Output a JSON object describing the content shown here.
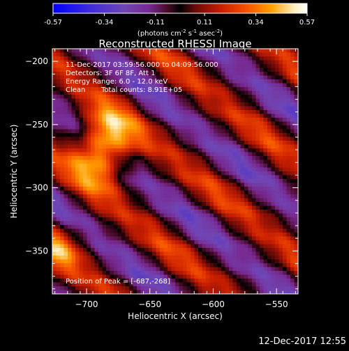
{
  "colorbar": {
    "ticks": [
      "-0.57",
      "-0.34",
      "-0.11",
      "0.11",
      "0.34",
      "0.57"
    ],
    "tick_values": [
      -0.57,
      -0.34,
      -0.11,
      0.11,
      0.34,
      0.57
    ],
    "units_prefix": "(photons cm",
    "units_exp1": "-2",
    "units_mid": " s",
    "units_exp2": "-1",
    "units_end": " asec",
    "units_exp3": "-2",
    "units_close": ")"
  },
  "chart_data": {
    "type": "heatmap",
    "title": "Reconstructed RHESSI Image",
    "xlabel": "Heliocentric X (arcsec)",
    "ylabel": "Heliocentric Y (arcsec)",
    "xlim": [
      -727,
      -533
    ],
    "ylim": [
      -384,
      -190
    ],
    "x_ticks": [
      -700,
      -650,
      -600,
      -550
    ],
    "x_tick_labels": [
      "−700",
      "−650",
      "−600",
      "−550"
    ],
    "y_ticks": [
      -200,
      -250,
      -300,
      -350
    ],
    "y_tick_labels": [
      "−200",
      "−250",
      "−300",
      "−350"
    ],
    "value_range": [
      -0.57,
      0.57
    ],
    "peak": [
      -687,
      -268
    ],
    "annotations": {
      "time_range": "11-Dec-2017 03:59:56.000 to 04:09:56.000",
      "detectors": "Detectors: 3F 6F 8F, Att 1",
      "energy": "Energy Range: 6.0 - 12.0 keV",
      "method": "Clean",
      "counts": "Total counts: 8.91E+05",
      "peak_label": "Position of Peak = [-687,-268]"
    }
  },
  "footer": {
    "timestamp": "12-Dec-2017 12:55"
  },
  "colors": {
    "background": "#000000",
    "text": "#ffffff",
    "colormap": [
      "#0000ff",
      "#3c2adc",
      "#7046b4",
      "#782890",
      "#4a0a28",
      "#000000",
      "#6a0a0a",
      "#c81e00",
      "#f65000",
      "#ffa000",
      "#fff0c0",
      "#ffffff"
    ]
  }
}
